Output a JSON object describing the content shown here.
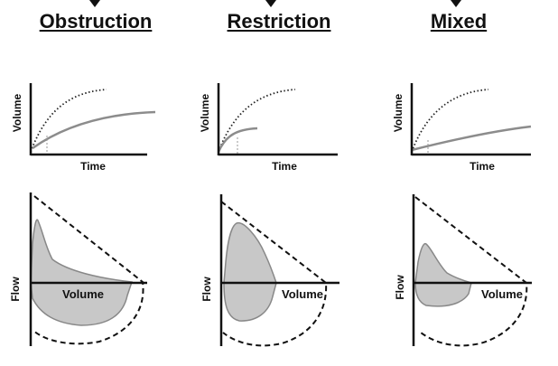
{
  "panels": [
    {
      "title": "Obstruction",
      "time_chart": {
        "ylabel": "Volume",
        "xlabel": "Time"
      },
      "loop_chart": {
        "ylabel": "Flow",
        "xlabel": "Volume"
      }
    },
    {
      "title": "Restriction",
      "time_chart": {
        "ylabel": "Volume",
        "xlabel": "Time"
      },
      "loop_chart": {
        "ylabel": "Flow",
        "xlabel": "Volume"
      }
    },
    {
      "title": "Mixed",
      "time_chart": {
        "ylabel": "Volume",
        "xlabel": "Time"
      },
      "loop_chart": {
        "ylabel": "Flow",
        "xlabel": "Volume"
      }
    }
  ],
  "colors": {
    "axis": "#111111",
    "normal_curve": "#222222",
    "patient_curve": "#8c8c8c",
    "loop_fill": "#c8c8c8"
  }
}
